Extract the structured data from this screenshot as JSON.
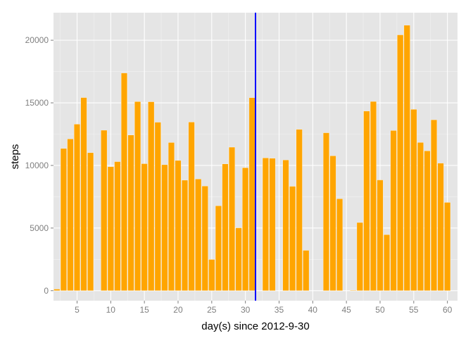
{
  "chart_data": {
    "type": "bar",
    "title": "",
    "xlabel": "day(s) since 2012-9-30",
    "ylabel": "steps",
    "x": [
      1,
      2,
      3,
      4,
      5,
      6,
      7,
      8,
      9,
      10,
      11,
      12,
      13,
      14,
      15,
      16,
      17,
      18,
      19,
      20,
      21,
      22,
      23,
      24,
      25,
      26,
      27,
      28,
      29,
      30,
      31,
      32,
      33,
      34,
      35,
      36,
      37,
      38,
      39,
      40,
      41,
      42,
      43,
      44,
      45,
      46,
      47,
      48,
      49,
      50,
      51,
      52,
      53,
      54,
      55,
      56,
      57,
      58,
      59,
      60,
      61
    ],
    "values": [
      0,
      126,
      11352,
      12116,
      13294,
      15420,
      11015,
      0,
      12811,
      9900,
      10304,
      17382,
      12426,
      15098,
      10139,
      15084,
      13452,
      10056,
      11829,
      10395,
      8821,
      13460,
      8918,
      8355,
      2492,
      6778,
      10119,
      11458,
      5018,
      9819,
      15414,
      0,
      10600,
      10571,
      0,
      10439,
      8334,
      12883,
      3219,
      0,
      0,
      12608,
      10765,
      7336,
      0,
      41,
      5441,
      14339,
      15110,
      8841,
      4472,
      12787,
      20427,
      21194,
      14478,
      11834,
      11162,
      13646,
      10183,
      7047,
      0
    ],
    "xlim": [
      1.5,
      61.5
    ],
    "ylim": [
      -800,
      22200
    ],
    "xticks": [
      5,
      10,
      15,
      20,
      25,
      30,
      35,
      40,
      45,
      50,
      55,
      60
    ],
    "yticks": [
      0,
      5000,
      10000,
      15000,
      20000
    ],
    "vline": 31.5,
    "bar_color": "#FFA500",
    "vline_color": "#0000FF",
    "panel_bg": "#E5E5E5",
    "grid_color": "#FFFFFF",
    "grid": true,
    "legend": "none"
  }
}
